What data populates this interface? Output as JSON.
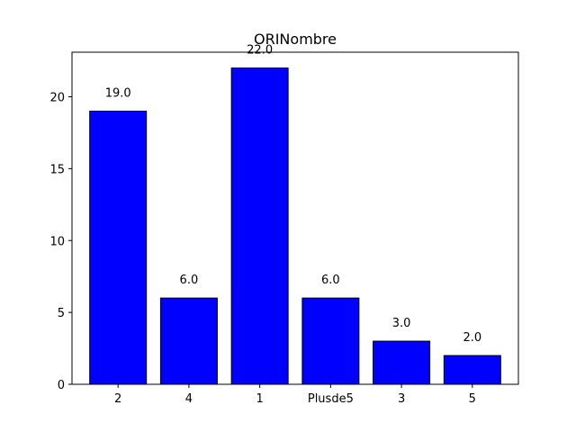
{
  "chart_data": {
    "type": "bar",
    "title": "ORINombre",
    "xlabel": "",
    "ylabel": "",
    "categories": [
      "2",
      "4",
      "1",
      "Plusde5",
      "3",
      "5"
    ],
    "values": [
      19.0,
      6.0,
      22.0,
      6.0,
      3.0,
      2.0
    ],
    "data_labels": [
      "19.0",
      "6.0",
      "22.0",
      "6.0",
      "3.0",
      "2.0"
    ],
    "ylim": [
      0,
      23.1
    ],
    "yticks": [
      0,
      5,
      10,
      15,
      20
    ],
    "ytick_labels": [
      "0",
      "5",
      "10",
      "15",
      "20"
    ],
    "grid": false,
    "bar_color": "#0000ff",
    "edge_color": "#000000"
  }
}
